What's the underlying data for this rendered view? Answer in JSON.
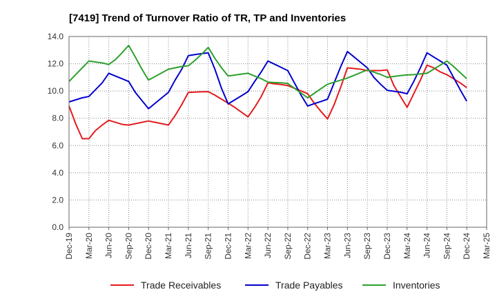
{
  "chart_data": {
    "type": "line",
    "title": "[7419]  Trend of Turnover Ratio of TR, TP and Inventories",
    "xlabel": "",
    "ylabel": "",
    "ylim": [
      0,
      14
    ],
    "yticks": [
      "0.0",
      "2.0",
      "4.0",
      "6.0",
      "8.0",
      "10.0",
      "12.0",
      "14.0"
    ],
    "xticks": [
      "Dec-19",
      "Mar-20",
      "Jun-20",
      "Sep-20",
      "Dec-20",
      "Mar-21",
      "Jun-21",
      "Sep-21",
      "Dec-21",
      "Mar-22",
      "Jun-22",
      "Sep-22",
      "Dec-22",
      "Mar-23",
      "Jun-23",
      "Sep-23",
      "Dec-23",
      "Mar-24",
      "Jun-24",
      "Sep-24",
      "Dec-24",
      "Mar-25"
    ],
    "x": [
      "Dec-19",
      "Jan-20",
      "Feb-20",
      "Mar-20",
      "Apr-20",
      "May-20",
      "Jun-20",
      "Jul-20",
      "Aug-20",
      "Sep-20",
      "Oct-20",
      "Nov-20",
      "Dec-20",
      "Jan-21",
      "Feb-21",
      "Mar-21",
      "Apr-21",
      "May-21",
      "Jun-21",
      "Jul-21",
      "Aug-21",
      "Sep-21",
      "Oct-21",
      "Nov-21",
      "Dec-21",
      "Jan-22",
      "Feb-22",
      "Mar-22",
      "Apr-22",
      "May-22",
      "Jun-22",
      "Jul-22",
      "Aug-22",
      "Sep-22",
      "Oct-22",
      "Nov-22",
      "Dec-22",
      "Jan-23",
      "Feb-23",
      "Mar-23",
      "Apr-23",
      "May-23",
      "Jun-23",
      "Jul-23",
      "Aug-23",
      "Sep-23",
      "Oct-23",
      "Nov-23",
      "Dec-23",
      "Jan-24",
      "Feb-24",
      "Mar-24",
      "Apr-24",
      "May-24",
      "Jun-24",
      "Jul-24",
      "Aug-24",
      "Sep-24",
      "Oct-24",
      "Nov-24",
      "Dec-24"
    ],
    "series": [
      {
        "name": "Trade Receivables",
        "color": "#e41a1c",
        "values": [
          8.9,
          7.6,
          6.5,
          6.5,
          7.1,
          7.5,
          7.85,
          7.7,
          7.55,
          7.5,
          7.6,
          7.7,
          7.8,
          7.7,
          7.6,
          7.5,
          8.2,
          9.0,
          9.9,
          9.92,
          9.94,
          9.95,
          9.7,
          9.4,
          9.1,
          8.8,
          8.45,
          8.1,
          8.8,
          9.6,
          10.6,
          10.53,
          10.47,
          10.4,
          10.2,
          10.0,
          9.8,
          9.1,
          8.5,
          7.95,
          9.0,
          10.3,
          11.7,
          11.65,
          11.6,
          11.5,
          11.5,
          11.5,
          11.55,
          10.4,
          9.6,
          8.8,
          9.8,
          10.8,
          11.9,
          11.7,
          11.4,
          11.2,
          10.9,
          10.6,
          10.25
        ]
      },
      {
        "name": "Trade Payables",
        "color": "#0000cc",
        "values": [
          9.2,
          9.35,
          9.5,
          9.6,
          10.1,
          10.6,
          11.3,
          11.1,
          10.9,
          10.7,
          9.9,
          9.3,
          8.7,
          9.1,
          9.5,
          9.9,
          10.8,
          11.6,
          12.6,
          12.67,
          12.74,
          12.8,
          11.6,
          10.2,
          9.05,
          9.35,
          9.65,
          9.95,
          10.7,
          11.4,
          12.2,
          11.97,
          11.73,
          11.5,
          10.6,
          9.7,
          8.9,
          9.07,
          9.23,
          9.4,
          10.6,
          11.8,
          12.9,
          12.5,
          12.1,
          11.7,
          11.0,
          10.5,
          10.05,
          9.98,
          9.91,
          9.8,
          10.7,
          11.7,
          12.8,
          12.5,
          12.2,
          11.9,
          11.0,
          10.1,
          9.25
        ]
      },
      {
        "name": "Inventories",
        "color": "#2ca02c",
        "values": [
          10.7,
          11.2,
          11.7,
          12.2,
          12.13,
          12.06,
          11.95,
          12.3,
          12.8,
          13.35,
          12.5,
          11.6,
          10.8,
          11.07,
          11.33,
          11.6,
          11.7,
          11.8,
          11.85,
          12.25,
          12.7,
          13.2,
          12.4,
          11.7,
          11.1,
          11.17,
          11.24,
          11.3,
          11.1,
          10.9,
          10.65,
          10.62,
          10.6,
          10.55,
          10.2,
          9.85,
          9.5,
          9.83,
          10.17,
          10.5,
          10.65,
          10.8,
          10.95,
          11.15,
          11.35,
          11.55,
          11.38,
          11.22,
          11.0,
          11.07,
          11.13,
          11.18,
          11.2,
          11.25,
          11.3,
          11.6,
          11.9,
          12.2,
          11.8,
          11.35,
          10.9
        ]
      }
    ],
    "legend_position": "bottom",
    "grid": true
  }
}
